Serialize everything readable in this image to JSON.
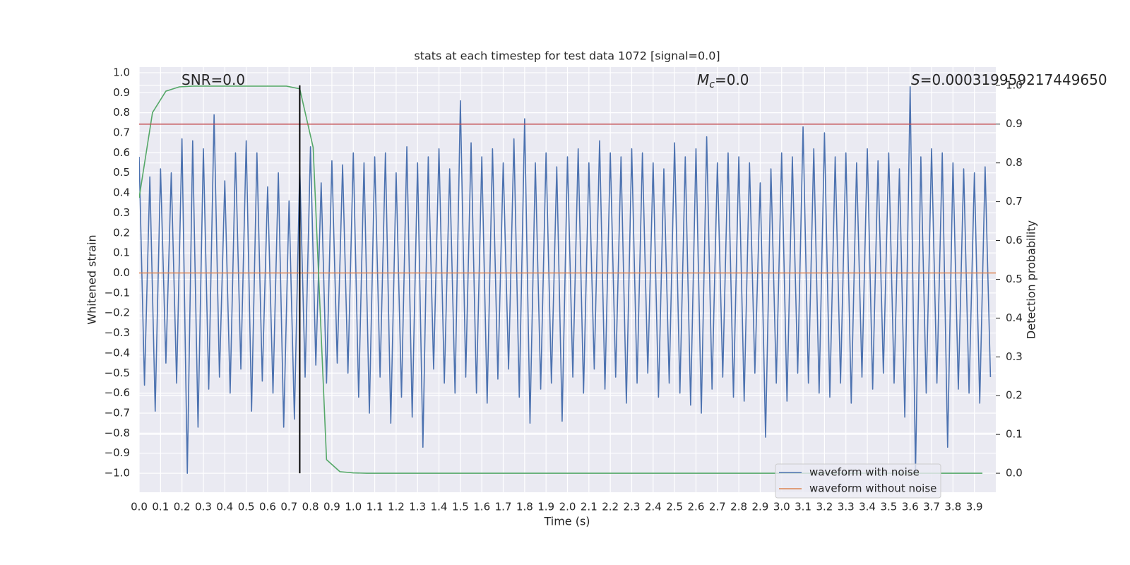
{
  "chart_data": {
    "type": "line",
    "title": "stats at each timestep for test data 1072 [signal=0.0]",
    "x_label": "Time (s)",
    "y_label": "Whitened strain",
    "y2_label": "Detection probability",
    "annotations": [
      {
        "text": "SNR=0.0"
      },
      {
        "symbol": "M",
        "subscript": "c",
        "text": "=0.0"
      },
      {
        "symbol": "S",
        "text": "=0.000319959217449650"
      }
    ],
    "xlim": [
      0,
      4.0
    ],
    "ylim": [
      -1.095,
      1.028
    ],
    "y2lim": [
      -0.049,
      1.047
    ],
    "grid": true,
    "legend": "lower right",
    "xticks": [
      {
        "value": 0,
        "label": "0.0"
      },
      0.1,
      0.2,
      0.3,
      0.4,
      0.5,
      0.6,
      0.7,
      0.8,
      0.9,
      {
        "value": 1,
        "label": "1.0"
      },
      1.1,
      1.2,
      1.3,
      1.4,
      1.5,
      1.6,
      1.7,
      1.8,
      1.9,
      {
        "value": 2,
        "label": "2.0"
      },
      2.1,
      2.2,
      2.3,
      2.4,
      2.5,
      2.6,
      2.7,
      2.8,
      2.9,
      {
        "value": 3,
        "label": "3.0"
      },
      3.1,
      3.2,
      3.3,
      3.4,
      3.5,
      3.6,
      3.7,
      3.8,
      3.9
    ],
    "yticks": [
      {
        "value": -1,
        "label": "−1.0"
      },
      {
        "value": -0.9,
        "label": "−0.9"
      },
      {
        "value": -0.8,
        "label": "−0.8"
      },
      {
        "value": -0.7,
        "label": "−0.7"
      },
      {
        "value": -0.6,
        "label": "−0.6"
      },
      {
        "value": -0.5,
        "label": "−0.5"
      },
      {
        "value": -0.4,
        "label": "−0.4"
      },
      {
        "value": -0.3,
        "label": "−0.3"
      },
      {
        "value": -0.2,
        "label": "−0.2"
      },
      {
        "value": -0.1,
        "label": "−0.1"
      },
      {
        "value": 0,
        "label": "0.0"
      },
      0.1,
      0.2,
      0.3,
      0.4,
      0.5,
      0.6,
      0.7,
      0.8,
      0.9,
      {
        "value": 1,
        "label": "1.0"
      }
    ],
    "y2ticks": [
      {
        "value": 0,
        "label": "0.0"
      },
      0.1,
      0.2,
      0.3,
      0.4,
      0.5,
      0.6,
      0.7,
      0.8,
      0.9,
      {
        "value": 1,
        "label": "1.0"
      }
    ],
    "hlines": [
      {
        "value": 0.9,
        "axis": "y2",
        "color": "#c44e52"
      }
    ],
    "vlines": [
      {
        "x": 0.75,
        "ymin": 0,
        "ymax": 1,
        "axis": "y2",
        "color": "#000000"
      }
    ],
    "series": [
      {
        "name": "waveform with noise",
        "color": "#4c72b0",
        "x": [
          0,
          0.025,
          0.05,
          0.075,
          0.1,
          0.125,
          0.15,
          0.175,
          0.2,
          0.225,
          0.25,
          0.275,
          0.3,
          0.325,
          0.35,
          0.375,
          0.4,
          0.425,
          0.45,
          0.475,
          0.5,
          0.525,
          0.55,
          0.575,
          0.6,
          0.625,
          0.65,
          0.675,
          0.7,
          0.725,
          0.75,
          0.775,
          0.8,
          0.825,
          0.85,
          0.875,
          0.9,
          0.925,
          0.95,
          0.975,
          1.0,
          1.025,
          1.05,
          1.075,
          1.1,
          1.125,
          1.15,
          1.175,
          1.2,
          1.225,
          1.25,
          1.275,
          1.3,
          1.325,
          1.35,
          1.375,
          1.4,
          1.425,
          1.45,
          1.475,
          1.5,
          1.525,
          1.55,
          1.575,
          1.6,
          1.625,
          1.65,
          1.675,
          1.7,
          1.725,
          1.75,
          1.775,
          1.8,
          1.825,
          1.85,
          1.875,
          1.9,
          1.925,
          1.95,
          1.975,
          2.0,
          2.025,
          2.05,
          2.075,
          2.1,
          2.125,
          2.15,
          2.175,
          2.2,
          2.225,
          2.25,
          2.275,
          2.3,
          2.325,
          2.35,
          2.375,
          2.4,
          2.425,
          2.45,
          2.475,
          2.5,
          2.525,
          2.55,
          2.575,
          2.6,
          2.625,
          2.65,
          2.675,
          2.7,
          2.725,
          2.75,
          2.775,
          2.8,
          2.825,
          2.85,
          2.875,
          2.9,
          2.925,
          2.95,
          2.975,
          3.0,
          3.025,
          3.05,
          3.075,
          3.1,
          3.125,
          3.15,
          3.175,
          3.2,
          3.225,
          3.25,
          3.275,
          3.3,
          3.325,
          3.35,
          3.375,
          3.4,
          3.425,
          3.45,
          3.475,
          3.5,
          3.525,
          3.55,
          3.575,
          3.6,
          3.625,
          3.65,
          3.675,
          3.7,
          3.725,
          3.75,
          3.775,
          3.8,
          3.825,
          3.85,
          3.875,
          3.9,
          3.925,
          3.95,
          3.975
        ],
        "values": [
          0.58,
          -0.56,
          0.48,
          -0.69,
          0.52,
          -0.45,
          0.5,
          -0.55,
          0.67,
          -1.0,
          0.66,
          -0.77,
          0.62,
          -0.58,
          0.79,
          -0.52,
          0.46,
          -0.6,
          0.6,
          -0.48,
          0.66,
          -0.69,
          0.6,
          -0.54,
          0.43,
          -0.6,
          0.5,
          -0.77,
          0.36,
          -0.73,
          0.53,
          -0.52,
          0.63,
          -0.46,
          0.45,
          -0.55,
          0.56,
          -0.45,
          0.54,
          -0.5,
          0.6,
          -0.62,
          0.55,
          -0.7,
          0.58,
          -0.52,
          0.6,
          -0.75,
          0.5,
          -0.62,
          0.63,
          -0.72,
          0.55,
          -0.87,
          0.58,
          -0.48,
          0.62,
          -0.55,
          0.52,
          -0.6,
          0.86,
          -0.52,
          0.65,
          -0.6,
          0.58,
          -0.65,
          0.62,
          -0.53,
          0.55,
          -0.48,
          0.67,
          -0.62,
          0.77,
          -0.75,
          0.55,
          -0.58,
          0.6,
          -0.55,
          0.53,
          -0.74,
          0.58,
          -0.52,
          0.62,
          -0.6,
          0.55,
          -0.48,
          0.66,
          -0.58,
          0.6,
          -0.52,
          0.58,
          -0.65,
          0.62,
          -0.55,
          0.6,
          -0.5,
          0.55,
          -0.62,
          0.52,
          -0.55,
          0.65,
          -0.6,
          0.58,
          -0.66,
          0.62,
          -0.7,
          0.68,
          -0.58,
          0.55,
          -0.52,
          0.6,
          -0.62,
          0.58,
          -0.64,
          0.55,
          -0.5,
          0.45,
          -0.82,
          0.52,
          -0.55,
          0.6,
          -0.64,
          0.58,
          -0.5,
          0.73,
          -0.55,
          0.62,
          -0.6,
          0.7,
          -0.62,
          0.58,
          -0.55,
          0.6,
          -0.65,
          0.55,
          -0.52,
          0.62,
          -0.58,
          0.56,
          -0.5,
          0.6,
          -0.55,
          0.52,
          -0.72,
          0.93,
          -1.0,
          0.58,
          -0.6,
          0.62,
          -0.55,
          0.6,
          -0.87,
          0.55,
          -0.58,
          0.52,
          -0.6,
          0.5,
          -0.65,
          0.53,
          -0.52
        ]
      },
      {
        "name": "waveform without noise",
        "color": "#dd8452",
        "x": [
          0,
          4.0
        ],
        "values": [
          0,
          0
        ]
      },
      {
        "color": "#55a868",
        "axis": "y2",
        "x": [
          0,
          0.0625,
          0.125,
          0.1875,
          0.25,
          0.3125,
          0.375,
          0.4375,
          0.5,
          0.5625,
          0.625,
          0.6875,
          0.75,
          0.8125,
          0.875,
          0.9375,
          1.0,
          1.0625,
          1.125,
          1.1875,
          1.25,
          1.3125,
          1.375,
          1.4375,
          1.5,
          1.5625,
          1.625,
          1.6875,
          1.75,
          1.8125,
          1.875,
          1.9375,
          2.0,
          2.0625,
          2.125,
          2.1875,
          2.25,
          2.3125,
          2.375,
          2.4375,
          2.5,
          2.5625,
          2.625,
          2.6875,
          2.75,
          2.8125,
          2.875,
          2.9375,
          3.0,
          3.0625,
          3.125,
          3.1875,
          3.25,
          3.3125,
          3.375,
          3.4375,
          3.5,
          3.5625,
          3.625,
          3.6875,
          3.75,
          3.8125,
          3.875,
          3.9375
        ],
        "values": [
          0.71,
          0.93,
          0.985,
          0.996,
          0.998,
          0.998,
          0.998,
          0.998,
          0.998,
          0.998,
          0.998,
          0.998,
          0.991,
          0.84,
          0.035,
          0.004,
          0.001,
          0,
          0,
          0,
          0,
          0,
          0,
          0,
          0,
          0,
          0,
          0,
          0,
          0,
          0,
          0,
          0,
          0,
          0,
          0,
          0,
          0,
          0,
          0,
          0,
          0,
          0,
          0,
          0,
          0,
          0,
          0,
          0,
          0,
          0,
          0,
          0,
          0,
          0,
          0,
          0,
          0,
          0,
          0,
          0,
          0,
          0,
          0
        ]
      }
    ]
  }
}
